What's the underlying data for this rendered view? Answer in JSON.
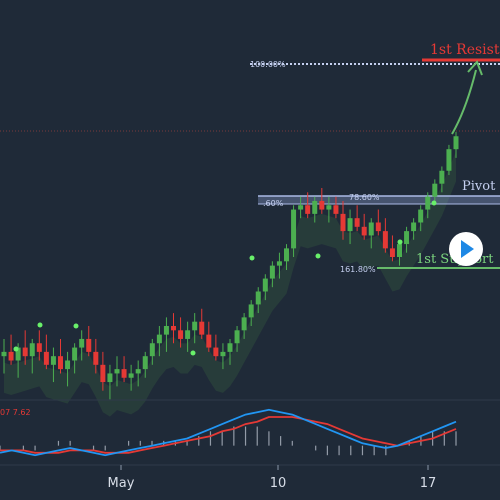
{
  "colors": {
    "background": "#1f2a38",
    "up": "#4caf50",
    "down": "#e53935",
    "cloud": "#2e4a3d",
    "macd_line": "#2196f3",
    "signal_line": "#e53935",
    "histogram": "#b0b8c4",
    "resistance": "#e53935",
    "pivot": "#aab9e6",
    "support": "#66bb6a",
    "arrow": "#66bb6a",
    "dots": "#69f06a",
    "play_button": "#ffffff",
    "play_icon": "#1e88e5"
  },
  "labels": {
    "resistance": "1st Resist",
    "pivot": "Pivot",
    "support": "1st Support",
    "fib_top": "100.00%",
    "fib_pivot": "78.60%",
    "fib_pivot_left": ".60%",
    "fib_support": "161.80%",
    "macd_values": "07  7.62"
  },
  "chart_data": {
    "type": "candlestick",
    "x_ticks": [
      "May",
      "10",
      "17"
    ],
    "candles": [
      {
        "o": 44,
        "h": 48,
        "l": 40,
        "c": 45
      },
      {
        "o": 45,
        "h": 49,
        "l": 42,
        "c": 43
      },
      {
        "o": 43,
        "h": 47,
        "l": 39,
        "c": 46
      },
      {
        "o": 46,
        "h": 50,
        "l": 42,
        "c": 44
      },
      {
        "o": 44,
        "h": 48,
        "l": 40,
        "c": 47
      },
      {
        "o": 47,
        "h": 50,
        "l": 43,
        "c": 45
      },
      {
        "o": 45,
        "h": 49,
        "l": 41,
        "c": 42
      },
      {
        "o": 42,
        "h": 46,
        "l": 38,
        "c": 44
      },
      {
        "o": 44,
        "h": 48,
        "l": 40,
        "c": 41
      },
      {
        "o": 41,
        "h": 45,
        "l": 37,
        "c": 43
      },
      {
        "o": 43,
        "h": 47,
        "l": 40,
        "c": 46
      },
      {
        "o": 46,
        "h": 50,
        "l": 43,
        "c": 48
      },
      {
        "o": 48,
        "h": 51,
        "l": 44,
        "c": 45
      },
      {
        "o": 45,
        "h": 48,
        "l": 40,
        "c": 42
      },
      {
        "o": 42,
        "h": 45,
        "l": 36,
        "c": 38
      },
      {
        "o": 38,
        "h": 42,
        "l": 34,
        "c": 40
      },
      {
        "o": 40,
        "h": 44,
        "l": 37,
        "c": 41
      },
      {
        "o": 41,
        "h": 44,
        "l": 38,
        "c": 39
      },
      {
        "o": 39,
        "h": 42,
        "l": 36,
        "c": 40
      },
      {
        "o": 40,
        "h": 43,
        "l": 37,
        "c": 41
      },
      {
        "o": 41,
        "h": 45,
        "l": 39,
        "c": 44
      },
      {
        "o": 44,
        "h": 48,
        "l": 42,
        "c": 47
      },
      {
        "o": 47,
        "h": 51,
        "l": 44,
        "c": 49
      },
      {
        "o": 49,
        "h": 53,
        "l": 45,
        "c": 51
      },
      {
        "o": 51,
        "h": 54,
        "l": 47,
        "c": 50
      },
      {
        "o": 50,
        "h": 53,
        "l": 46,
        "c": 48
      },
      {
        "o": 48,
        "h": 52,
        "l": 45,
        "c": 50
      },
      {
        "o": 50,
        "h": 54,
        "l": 47,
        "c": 52
      },
      {
        "o": 52,
        "h": 55,
        "l": 48,
        "c": 49
      },
      {
        "o": 49,
        "h": 52,
        "l": 45,
        "c": 46
      },
      {
        "o": 46,
        "h": 49,
        "l": 43,
        "c": 44
      },
      {
        "o": 44,
        "h": 47,
        "l": 41,
        "c": 45
      },
      {
        "o": 45,
        "h": 48,
        "l": 42,
        "c": 47
      },
      {
        "o": 47,
        "h": 51,
        "l": 45,
        "c": 50
      },
      {
        "o": 50,
        "h": 54,
        "l": 48,
        "c": 53
      },
      {
        "o": 53,
        "h": 57,
        "l": 51,
        "c": 56
      },
      {
        "o": 56,
        "h": 60,
        "l": 54,
        "c": 59
      },
      {
        "o": 59,
        "h": 63,
        "l": 57,
        "c": 62
      },
      {
        "o": 62,
        "h": 66,
        "l": 60,
        "c": 65
      },
      {
        "o": 65,
        "h": 68,
        "l": 62,
        "c": 66
      },
      {
        "o": 66,
        "h": 70,
        "l": 64,
        "c": 69
      },
      {
        "o": 69,
        "h": 79,
        "l": 67,
        "c": 78
      },
      {
        "o": 78,
        "h": 81,
        "l": 76,
        "c": 79
      },
      {
        "o": 79,
        "h": 82,
        "l": 76,
        "c": 77
      },
      {
        "o": 77,
        "h": 81,
        "l": 75,
        "c": 80
      },
      {
        "o": 80,
        "h": 83,
        "l": 77,
        "c": 78
      },
      {
        "o": 78,
        "h": 81,
        "l": 75,
        "c": 79
      },
      {
        "o": 79,
        "h": 81,
        "l": 76,
        "c": 77
      },
      {
        "o": 77,
        "h": 80,
        "l": 71,
        "c": 73
      },
      {
        "o": 73,
        "h": 78,
        "l": 70,
        "c": 76
      },
      {
        "o": 76,
        "h": 79,
        "l": 73,
        "c": 74
      },
      {
        "o": 74,
        "h": 77,
        "l": 71,
        "c": 72
      },
      {
        "o": 72,
        "h": 76,
        "l": 69,
        "c": 75
      },
      {
        "o": 75,
        "h": 78,
        "l": 72,
        "c": 73
      },
      {
        "o": 73,
        "h": 76,
        "l": 68,
        "c": 69
      },
      {
        "o": 69,
        "h": 72,
        "l": 66,
        "c": 67
      },
      {
        "o": 67,
        "h": 71,
        "l": 65,
        "c": 70
      },
      {
        "o": 70,
        "h": 74,
        "l": 68,
        "c": 73
      },
      {
        "o": 73,
        "h": 76,
        "l": 71,
        "c": 75
      },
      {
        "o": 75,
        "h": 79,
        "l": 73,
        "c": 78
      },
      {
        "o": 78,
        "h": 82,
        "l": 76,
        "c": 81
      },
      {
        "o": 81,
        "h": 85,
        "l": 79,
        "c": 84
      },
      {
        "o": 84,
        "h": 88,
        "l": 82,
        "c": 87
      },
      {
        "o": 87,
        "h": 93,
        "l": 86,
        "c": 92
      },
      {
        "o": 92,
        "h": 96,
        "l": 90,
        "c": 95
      }
    ],
    "levels": {
      "resistance": 113,
      "pivot": 80,
      "support": 68
    },
    "macd": {
      "macd": [
        -3,
        -2,
        -3,
        -4,
        -3,
        -2,
        -1,
        -2,
        -3,
        -4,
        -3,
        -2,
        -1,
        0,
        1,
        2,
        3,
        5,
        7,
        9,
        11,
        13,
        14,
        15,
        14,
        13,
        11,
        9,
        7,
        5,
        3,
        1,
        0,
        -1,
        0,
        2,
        4,
        6,
        8,
        10
      ],
      "signal": [
        -2,
        -2,
        -2,
        -3,
        -3,
        -3,
        -2,
        -2,
        -2,
        -3,
        -3,
        -3,
        -2,
        -1,
        0,
        1,
        2,
        3,
        4,
        6,
        7,
        9,
        10,
        12,
        12,
        12,
        11,
        10,
        9,
        7,
        5,
        3,
        2,
        1,
        0,
        1,
        2,
        3,
        5,
        7
      ]
    }
  }
}
